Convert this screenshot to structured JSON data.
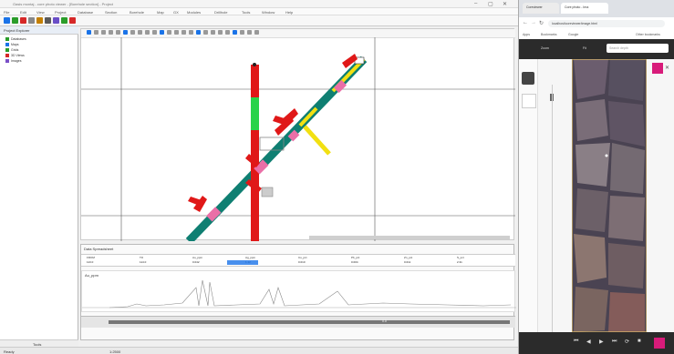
{
  "window": {
    "title": "Oasis montaj - core photo viewer - [Borehole section] - Project",
    "controls": [
      "–",
      "▢",
      "✕"
    ]
  },
  "menu": {
    "items": [
      "File",
      "Edit",
      "View",
      "Project",
      "Database",
      "Section",
      "Borehole",
      "Map",
      "GX",
      "Modules",
      "Drillhole",
      "Tools",
      "Window",
      "Help"
    ]
  },
  "toolbar": {
    "icon_colors": [
      "#1a73e8",
      "#2a9d2a",
      "#d62828",
      "#888888",
      "#c47f00",
      "#5a5a5a",
      "#6a4fc7",
      "#2a9d2a",
      "#d62828"
    ]
  },
  "left_panel": {
    "header": "Project Explorer",
    "items": [
      {
        "label": "Databases",
        "color": "#2a9d2a"
      },
      {
        "label": "Maps",
        "color": "#1a73e8"
      },
      {
        "label": "Grids",
        "color": "#2a9d2a"
      },
      {
        "label": "3D Views",
        "color": "#d62828"
      },
      {
        "label": "Images",
        "color": "#7a4fc7"
      }
    ],
    "footer": "Tools"
  },
  "plot": {
    "tab": "Section",
    "scale": "1:2500",
    "colors": {
      "vertical_hole": "#e01818",
      "diagonal_hole": "#0f7f72",
      "highlight_green": "#29d34a",
      "highlight_yellow": "#f2e012",
      "highlight_pink": "#ea6fa7",
      "flags": "#e01818"
    }
  },
  "lower_panel": {
    "title": "Data Spreadsheet",
    "columns": [
      "FROM",
      "TO",
      "Au_ppm",
      "Ag_ppm",
      "Cu_pct",
      "Pb_pct",
      "Zn_pct",
      "S_pct"
    ],
    "row_values": [
      "113.0",
      "114.0",
      "0.042",
      "1.12",
      "0.010",
      "0.004",
      "0.011",
      "2.31"
    ],
    "profile_label": "Au_ppm",
    "slider_label": "0.0"
  },
  "status": {
    "left": "Ready",
    "right": "1:2500"
  },
  "browser": {
    "tabs": [
      "Coreviewer",
      "Core photo - Ima"
    ],
    "address": "localhost/coreviewer/image.html",
    "bookmarks": [
      "Apps",
      "Bookmarks",
      "Google",
      "Other bookmarks"
    ],
    "viewer_buttons": [
      "Zoom",
      "Fit",
      "Search"
    ],
    "search_placeholder": "Search depth",
    "nav_icons": [
      "⏮",
      "◀",
      "▶",
      "⏭",
      "⟳",
      "■"
    ]
  }
}
